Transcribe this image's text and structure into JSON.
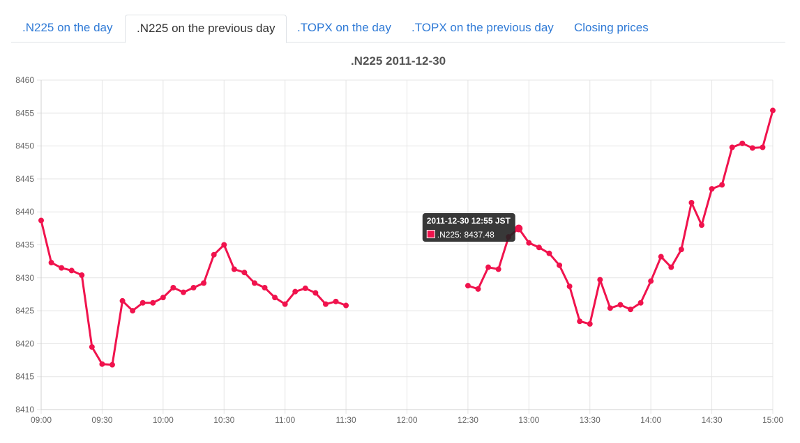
{
  "tabs": [
    {
      "label": ".N225 on the day",
      "active": false
    },
    {
      "label": ".N225 on the previous day",
      "active": true
    },
    {
      "label": ".TOPX on the day",
      "active": false
    },
    {
      "label": ".TOPX on the previous day",
      "active": false
    },
    {
      "label": "Closing prices",
      "active": false
    }
  ],
  "colors": {
    "series": "#f0134d",
    "tab_link": "#2f7ad6",
    "grid": "#e5e5e5",
    "tooltip_bg": "#222222"
  },
  "chart_data": {
    "type": "line",
    "title": ".N225 2011-12-30",
    "xlabel": "",
    "ylabel": "",
    "xlim": [
      "09:00",
      "15:00"
    ],
    "ylim": [
      8410,
      8460
    ],
    "x_ticks": [
      "09:00",
      "09:30",
      "10:00",
      "10:30",
      "11:00",
      "11:30",
      "12:00",
      "12:30",
      "13:00",
      "13:30",
      "14:00",
      "14:30",
      "15:00"
    ],
    "y_ticks": [
      8410,
      8415,
      8420,
      8425,
      8430,
      8435,
      8440,
      8445,
      8450,
      8455,
      8460
    ],
    "grid": true,
    "series": [
      {
        "name": ".N225",
        "segments": [
          {
            "x": [
              "09:00",
              "09:05",
              "09:10",
              "09:15",
              "09:20",
              "09:25",
              "09:30",
              "09:35",
              "09:40",
              "09:45",
              "09:50",
              "09:55",
              "10:00",
              "10:05",
              "10:10",
              "10:15",
              "10:20",
              "10:25",
              "10:30",
              "10:35",
              "10:40",
              "10:45",
              "10:50",
              "10:55",
              "11:00",
              "11:05",
              "11:10",
              "11:15",
              "11:20",
              "11:25",
              "11:30"
            ],
            "y": [
              8438.7,
              8432.3,
              8431.5,
              8431.1,
              8430.4,
              8419.5,
              8416.9,
              8416.8,
              8426.5,
              8425.0,
              8426.2,
              8426.2,
              8427.0,
              8428.5,
              8427.8,
              8428.5,
              8429.2,
              8433.5,
              8435.0,
              8431.3,
              8430.8,
              8429.2,
              8428.5,
              8427.0,
              8426.0,
              8427.9,
              8428.4,
              8427.7,
              8426.0,
              8426.4,
              8425.8
            ]
          },
          {
            "x": [
              "12:30",
              "12:35",
              "12:40",
              "12:45",
              "12:50",
              "12:55",
              "13:00",
              "13:05",
              "13:10",
              "13:15",
              "13:20",
              "13:25",
              "13:30",
              "13:35",
              "13:40",
              "13:45",
              "13:50",
              "13:55",
              "14:00",
              "14:05",
              "14:10",
              "14:15",
              "14:20",
              "14:25",
              "14:30",
              "14:35",
              "14:40",
              "14:45",
              "14:50",
              "14:55",
              "15:00"
            ],
            "y": [
              8428.8,
              8428.3,
              8431.6,
              8431.3,
              8436.2,
              8437.48,
              8435.3,
              8434.6,
              8433.7,
              8431.9,
              8428.7,
              8423.4,
              8423.0,
              8429.7,
              8425.4,
              8425.9,
              8425.2,
              8426.2,
              8429.5,
              8433.2,
              8431.6,
              8434.3,
              8441.4,
              8438.0,
              8443.5,
              8444.1,
              8449.8,
              8450.4,
              8449.7,
              8449.8,
              8455.4
            ]
          }
        ]
      }
    ],
    "tooltip": {
      "title": "2011-12-30 12:55 JST",
      "label": ".N225: 8437.48",
      "x": "12:55",
      "y": 8437.48
    }
  }
}
